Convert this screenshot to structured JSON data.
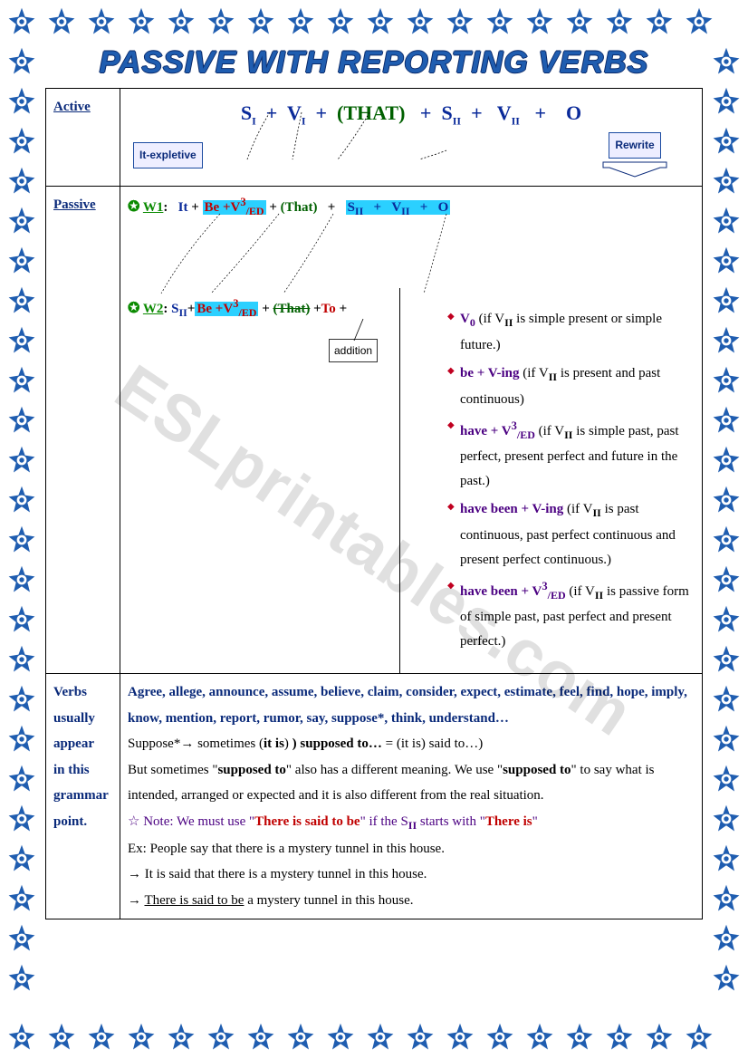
{
  "title": "PASSIVE WITH REPORTING VERBS",
  "border": {
    "star_color": "#1f5db0",
    "count_h": 17,
    "count_v": 26,
    "spacing": 45
  },
  "labels": {
    "active": "Active",
    "passive": "Passive",
    "verbs": "Verbs usually appear in this grammar point."
  },
  "active_formula": {
    "s1": "S",
    "s1_sub": "I",
    "plus": " + ",
    "v1": "V",
    "v1_sub": "I",
    "that": "(THAT)",
    "s2": "S",
    "s2_sub": "II",
    "v2": "V",
    "v2_sub": "II",
    "o": "O"
  },
  "callouts": {
    "it_expletive": "It-expletive",
    "rewrite": "Rewrite",
    "addition": "addition"
  },
  "w1": {
    "label": "W1",
    "it": "It",
    "be": "Be +V",
    "be_sup": "3",
    "be_sub": "/ED",
    "that": "(That)",
    "s2": "S",
    "s2_sub": "II",
    "v2": "V",
    "v2_sub": "II",
    "o": "O"
  },
  "w2": {
    "label": "W2",
    "s2": "S",
    "s2_sub": "II",
    "be": "Be +V",
    "be_sup": "3",
    "be_sub": "/ED",
    "that_strike": "(That)",
    "to": "To"
  },
  "rules": [
    {
      "lead": "V",
      "lead_sub": "0",
      "tail": " (if V",
      "tail_sub": "II",
      "rest": " is simple present or simple future.)"
    },
    {
      "lead": "be + V-ing",
      "tail": " (if V",
      "tail_sub": "II",
      "rest": " is present and past continuous)"
    },
    {
      "lead": "have + V",
      "lead_sup": "3",
      "lead_sub2": "/ED",
      "tail": " (if V",
      "tail_sub": "II",
      "rest": " is simple past, past perfect, present perfect and future in the past.)"
    },
    {
      "lead": "have been + V-ing",
      "tail": " (if V",
      "tail_sub": "II",
      "rest": " is past continuous, past perfect continuous and present perfect continuous.)"
    },
    {
      "lead": "have been + V",
      "lead_sup": "3",
      "lead_sub2": "/ED",
      "tail": " (if V",
      "tail_sub": "II",
      "rest": " is passive form of simple past, past perfect and present perfect.)"
    }
  ],
  "verbs": {
    "list": "Agree, allege, announce, assume, believe, claim, consider, expect, estimate, feel, find, hope, imply, know, mention, report, rumor, say, suppose*, think, understand…",
    "suppose1": "Suppose*→ sometimes (",
    "suppose1b": "it is",
    "suppose1c": ") supposed to…",
    "suppose1d": " = (it is) said to…)",
    "suppose2": "But sometimes \"",
    "suppose2b": "supposed to",
    "suppose2c": "\" also has a different meaning. We use \"",
    "suppose2d": "supposed to",
    "suppose2e": "\" to say what is intended, arranged or expected and it is also different from the real situation.",
    "note_star": "☆ ",
    "note": "Note: We must use \"",
    "note_red1": "There is said to be",
    "note_mid": "\" if the S",
    "note_sub": "II",
    "note_mid2": " starts with \"",
    "note_red2": "There is",
    "note_end": "\"",
    "ex_label": "Ex: ",
    "ex1": "People say that there is a mystery tunnel in this house.",
    "ex2_arrow": "→ ",
    "ex2": "It is said that there is a mystery tunnel in this house.",
    "ex3_arrow": "→ ",
    "ex3a": "There is said to be",
    "ex3b": " a mystery tunnel in this house."
  },
  "watermark": "ESLprintables.com"
}
